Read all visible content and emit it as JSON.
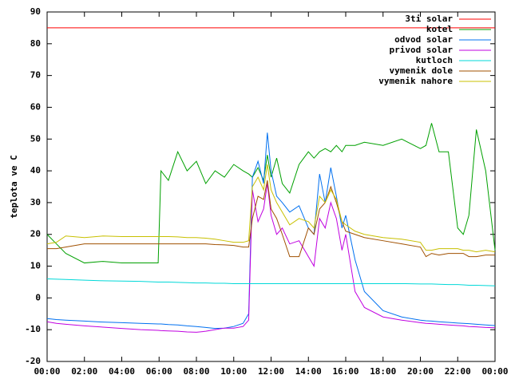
{
  "chart_data": {
    "type": "line",
    "y_label": "teplota ve C",
    "xlim": [
      0,
      24
    ],
    "xticks": [
      {
        "value": 0,
        "label": "00:00"
      },
      {
        "value": 2,
        "label": "02:00"
      },
      {
        "value": 4,
        "label": "04:00"
      },
      {
        "value": 6,
        "label": "06:00"
      },
      {
        "value": 8,
        "label": "08:00"
      },
      {
        "value": 10,
        "label": "10:00"
      },
      {
        "value": 12,
        "label": "12:00"
      },
      {
        "value": 14,
        "label": "14:00"
      },
      {
        "value": 16,
        "label": "16:00"
      },
      {
        "value": 18,
        "label": "18:00"
      },
      {
        "value": 20,
        "label": "20:00"
      },
      {
        "value": 22,
        "label": "22:00"
      },
      {
        "value": 24,
        "label": "00:00"
      }
    ],
    "ylim": [
      -20,
      90
    ],
    "yticks": [
      -20,
      -10,
      0,
      10,
      20,
      30,
      40,
      50,
      60,
      70,
      80,
      90
    ],
    "legend": "top-right",
    "x": [
      0,
      0.5,
      1,
      2,
      3,
      4,
      5,
      5.95,
      6.1,
      6.5,
      7,
      7.5,
      8,
      8.5,
      9,
      9.5,
      10,
      10.5,
      10.8,
      11,
      11.3,
      11.6,
      11.8,
      12,
      12.3,
      12.6,
      13,
      13.5,
      14,
      14.3,
      14.6,
      14.9,
      15.2,
      15.5,
      15.8,
      16,
      16.5,
      17,
      18,
      19,
      20,
      20.3,
      20.6,
      21,
      21.5,
      22,
      22.3,
      22.6,
      23,
      23.5,
      24
    ],
    "series": [
      {
        "name": "3ti solar",
        "color": "#ff0000",
        "values": [
          85,
          85,
          85,
          85,
          85,
          85,
          85,
          85,
          85,
          85,
          85,
          85,
          85,
          85,
          85,
          85,
          85,
          85,
          85,
          85,
          85,
          85,
          85,
          85,
          85,
          85,
          85,
          85,
          85,
          85,
          85,
          85,
          85,
          85,
          85,
          85,
          85,
          85,
          85,
          85,
          85,
          85,
          85,
          85,
          85,
          85,
          85,
          85,
          85,
          85,
          85
        ]
      },
      {
        "name": "kotel",
        "color": "#00a000",
        "values": [
          20,
          17,
          14,
          11,
          11.5,
          11,
          11,
          11,
          40,
          37,
          46,
          40,
          43,
          36,
          40,
          38,
          42,
          40,
          39,
          38,
          41,
          37,
          45,
          38,
          44,
          36,
          33,
          42,
          46,
          44,
          46,
          47,
          46,
          48,
          46,
          48,
          48,
          49,
          48,
          50,
          47,
          48,
          55,
          46,
          46,
          22,
          20,
          26,
          53,
          40,
          15
        ]
      },
      {
        "name": "odvod solar",
        "color": "#0070f0",
        "values": [
          -6.5,
          -6.8,
          -7,
          -7.3,
          -7.6,
          -7.8,
          -8,
          -8.2,
          -8.2,
          -8.4,
          -8.5,
          -8.8,
          -9,
          -9.3,
          -9.6,
          -9.5,
          -9,
          -8,
          -5,
          38,
          43,
          36,
          52,
          40,
          32,
          30,
          27,
          29,
          22,
          20,
          39,
          30,
          41,
          32,
          22,
          26,
          12,
          2,
          -4,
          -6,
          -7,
          -7.2,
          -7.3,
          -7.5,
          -7.7,
          -7.9,
          -8,
          -8.1,
          -8.3,
          -8.5,
          -8.7
        ]
      },
      {
        "name": "privod solar",
        "color": "#c000e0",
        "values": [
          -7.5,
          -8,
          -8.3,
          -8.8,
          -9.2,
          -9.6,
          -10,
          -10.2,
          -10.3,
          -10.4,
          -10.5,
          -10.7,
          -10.8,
          -10.5,
          -10,
          -9.5,
          -9.5,
          -9,
          -7,
          34,
          24,
          28,
          36,
          26,
          20,
          22,
          17,
          18,
          13,
          10,
          25,
          22,
          30,
          25,
          15,
          20,
          2,
          -3,
          -6,
          -7,
          -7.8,
          -8,
          -8.1,
          -8.3,
          -8.5,
          -8.7,
          -8.8,
          -9,
          -9.1,
          -9.3,
          -9.4
        ]
      },
      {
        "name": "kutloch",
        "color": "#00d8d8",
        "values": [
          6,
          5.9,
          5.8,
          5.6,
          5.4,
          5.3,
          5.2,
          5,
          5,
          5,
          4.9,
          4.8,
          4.7,
          4.7,
          4.6,
          4.6,
          4.5,
          4.5,
          4.5,
          4.5,
          4.5,
          4.5,
          4.5,
          4.5,
          4.5,
          4.5,
          4.5,
          4.5,
          4.5,
          4.5,
          4.5,
          4.5,
          4.5,
          4.5,
          4.5,
          4.5,
          4.5,
          4.5,
          4.5,
          4.5,
          4.4,
          4.4,
          4.4,
          4.3,
          4.2,
          4.2,
          4.1,
          4,
          4,
          3.9,
          3.8
        ]
      },
      {
        "name": "vymenik dole",
        "color": "#a05000",
        "values": [
          15.5,
          15.5,
          16,
          17,
          17,
          17,
          17,
          17,
          17,
          17,
          17,
          17,
          17,
          17,
          16.8,
          16.7,
          16.5,
          16,
          16,
          25,
          32,
          31,
          37,
          28,
          25,
          20,
          13,
          13,
          22,
          20,
          28,
          30,
          35,
          30,
          24,
          21,
          20,
          19,
          18,
          17,
          16,
          13,
          14,
          13.5,
          14,
          14,
          14,
          13,
          13,
          13.5,
          13.5
        ]
      },
      {
        "name": "vymenik nahore",
        "color": "#c8c000",
        "values": [
          17,
          17.5,
          19.5,
          19,
          19.5,
          19.3,
          19.3,
          19.3,
          19.3,
          19.3,
          19.2,
          19,
          19,
          18.8,
          18.5,
          18,
          17.5,
          17.5,
          18,
          35,
          38,
          34,
          42,
          34,
          30,
          27,
          23,
          25,
          24,
          22,
          32,
          30,
          34,
          31,
          24,
          23,
          21,
          20,
          19,
          18.5,
          17.5,
          15,
          15,
          15.5,
          15.5,
          15.5,
          15,
          15,
          14.5,
          15,
          14.5
        ]
      }
    ]
  }
}
